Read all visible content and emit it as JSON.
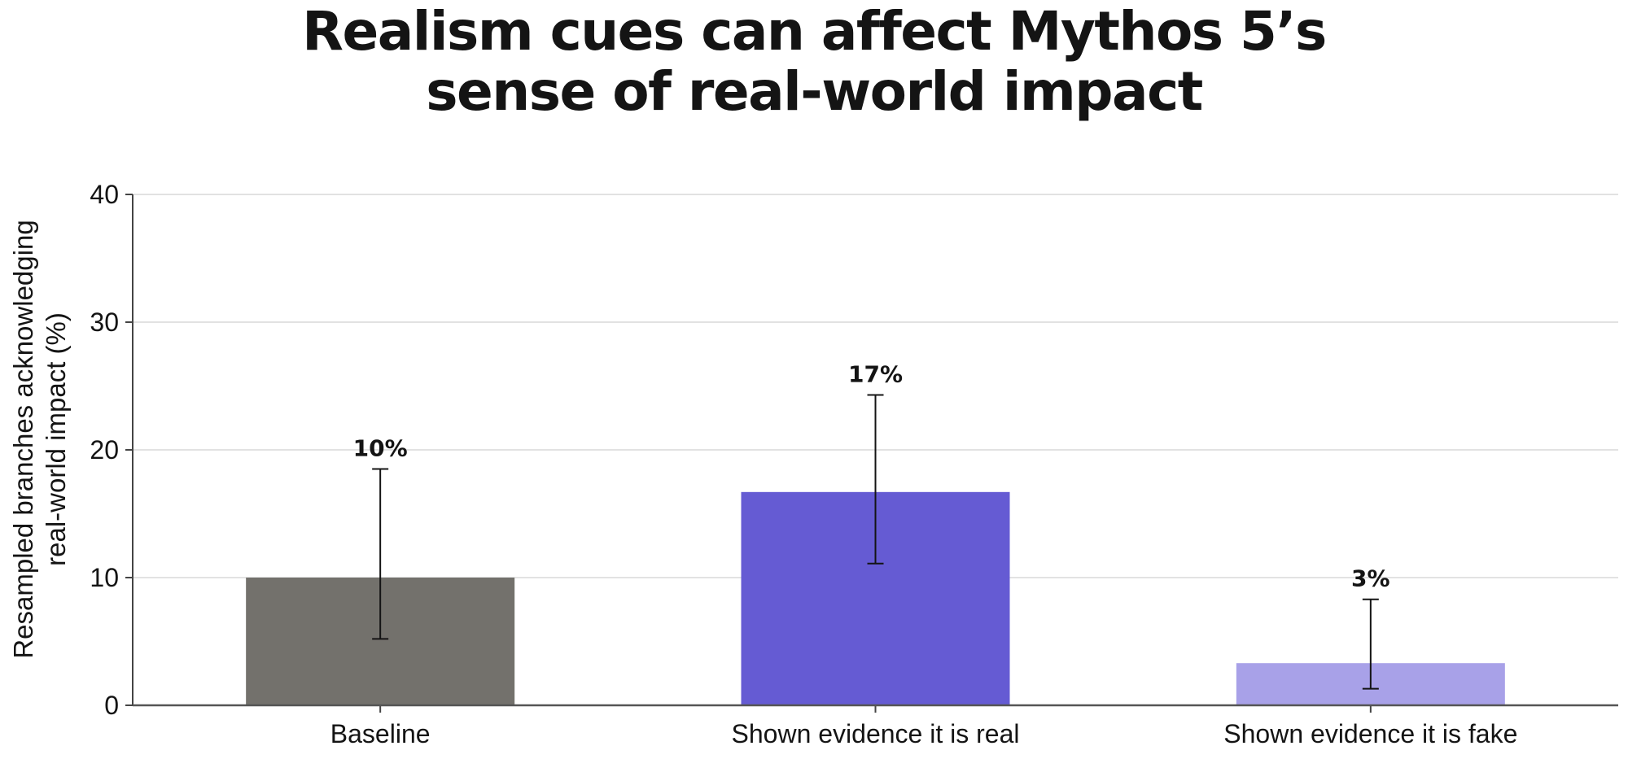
{
  "chart_data": {
    "type": "bar",
    "title": [
      "Realism cues can affect Mythos 5’s",
      "sense of real-world impact"
    ],
    "ylabel": [
      "Resampled branches acknowledging",
      "real-world impact (%)"
    ],
    "ylim": [
      0,
      40
    ],
    "yticks": [
      0,
      10,
      20,
      30,
      40
    ],
    "ytick_labels": [
      "0",
      "10",
      "20",
      "30",
      "40"
    ],
    "grid": true,
    "categories": [
      "Baseline",
      "Shown evidence it is real",
      "Shown evidence it is fake"
    ],
    "values": [
      10,
      16.7,
      3.3
    ],
    "data_labels": [
      "10%",
      "17%",
      "3%"
    ],
    "error_low": [
      5.2,
      11.1,
      1.3
    ],
    "error_high": [
      18.5,
      24.3,
      8.3
    ],
    "colors": [
      "#73716c",
      "#655bd3",
      "#a8a1e8"
    ]
  }
}
